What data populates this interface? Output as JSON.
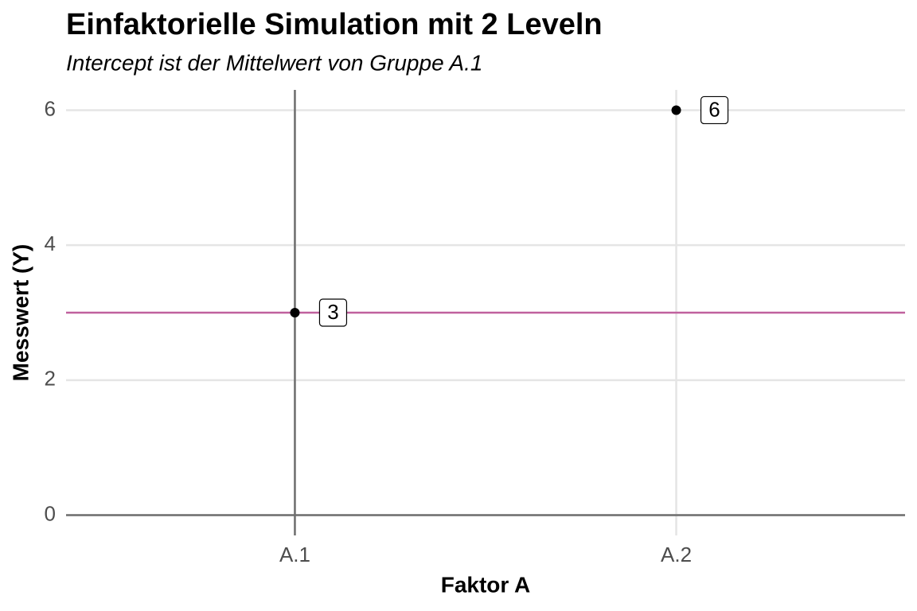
{
  "chart_data": {
    "type": "dot",
    "title": "Einfaktorielle Simulation mit 2 Leveln",
    "subtitle": "Intercept ist der Mittelwert von Gruppe A.1",
    "x_label": "Faktor A",
    "y_label": "Messwert (Y)",
    "categories": [
      "A.1",
      "A.2"
    ],
    "values": [
      3,
      6
    ],
    "color": "#000000",
    "intercept_color": "#c0619e",
    "ylim": [
      -0.3,
      6.3
    ],
    "yticks": [
      0,
      2,
      4,
      6
    ],
    "grid": true
  }
}
